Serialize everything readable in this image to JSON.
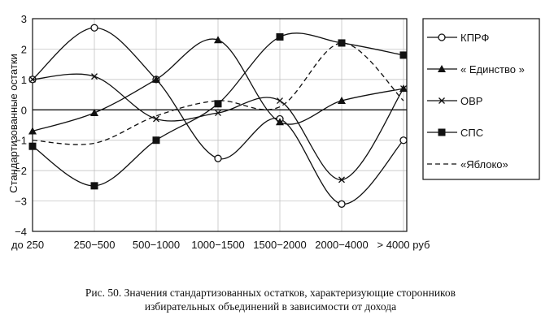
{
  "chart_data": {
    "type": "line",
    "ylabel": "Стандартизованные остатки",
    "xlabel": "",
    "categories": [
      "до 250",
      "250−500",
      "500−1000",
      "1000−1500",
      "1500−2000",
      "2000−4000",
      "> 4000 руб"
    ],
    "ylim": [
      -4,
      3
    ],
    "yticks": [
      -4,
      -3,
      -2,
      -1,
      0,
      1,
      2,
      3
    ],
    "grid": true,
    "legend_position": "right",
    "series": [
      {
        "name": "КПРФ",
        "marker": "circle-open",
        "dash": "solid",
        "values": [
          1.0,
          2.7,
          1.0,
          -1.6,
          -0.3,
          -3.1,
          -1.0
        ]
      },
      {
        "name": "« Единство »",
        "marker": "triangle",
        "dash": "solid",
        "values": [
          -0.7,
          -0.1,
          1.0,
          2.3,
          -0.4,
          0.3,
          0.7
        ]
      },
      {
        "name": "ОВР",
        "marker": "cross",
        "dash": "solid",
        "values": [
          1.0,
          1.1,
          -0.3,
          -0.1,
          0.3,
          -2.3,
          0.7
        ]
      },
      {
        "name": "СПС",
        "marker": "square",
        "dash": "solid",
        "values": [
          -1.2,
          -2.5,
          -1.0,
          0.2,
          2.4,
          2.2,
          1.8
        ]
      },
      {
        "name": "«Яблоко»",
        "marker": "none",
        "dash": "dashed",
        "values": [
          -1.0,
          -1.1,
          -0.2,
          0.3,
          0.1,
          2.2,
          0.3
        ]
      }
    ]
  },
  "caption": {
    "line1": "Рис. 50. Значения стандартизованных остатков, характеризующие сторонников",
    "line2": "избирательных объединений  в зависимости от дохода"
  }
}
